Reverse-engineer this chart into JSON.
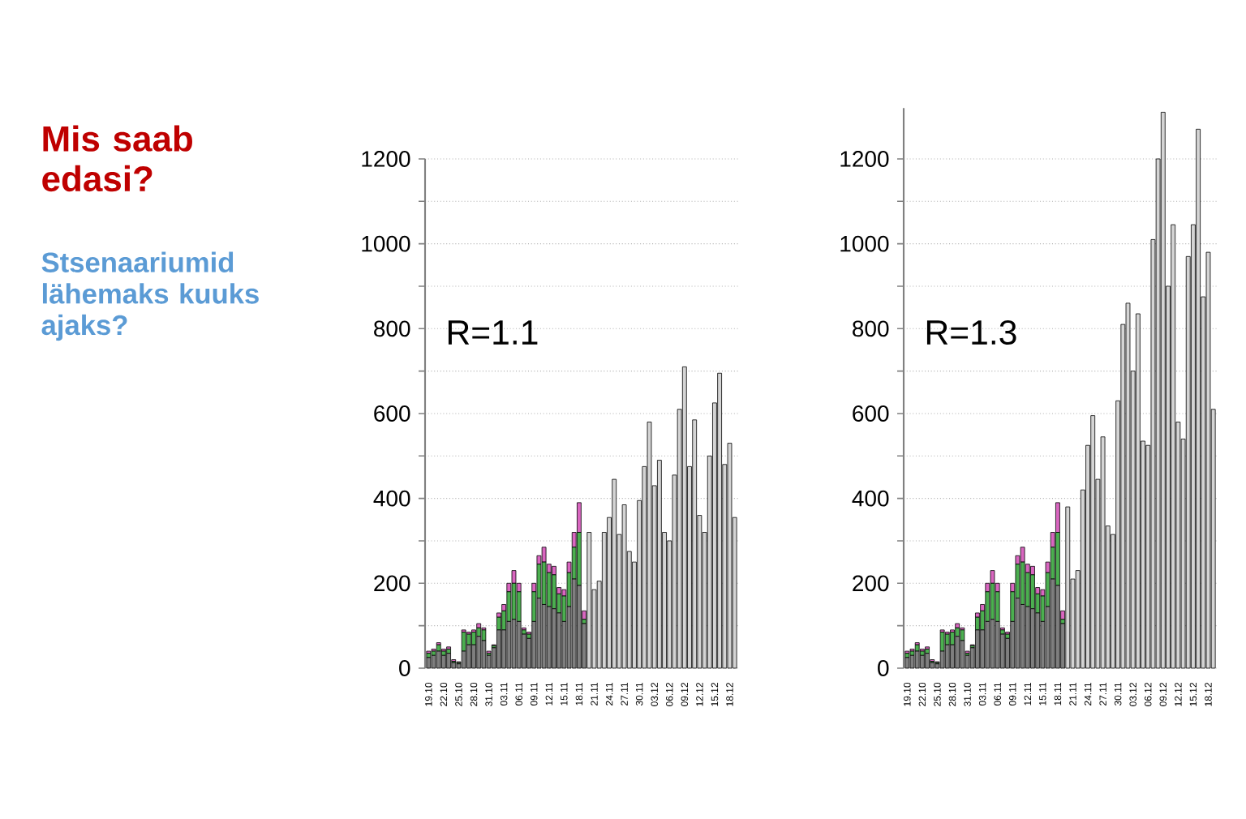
{
  "chart_data": [
    {
      "type": "bar",
      "title": "Mis saab edasi?",
      "subtitle": "Stsenaariumid lähemaks kuuks ajaks?",
      "stacked": true,
      "grid": "y",
      "annotations": [
        "R=1.1"
      ],
      "categories": [
        "19.10",
        null,
        null,
        "22.10",
        null,
        null,
        "25.10",
        null,
        null,
        "28.10",
        null,
        null,
        "31.10",
        null,
        null,
        "03.11",
        null,
        null,
        "06.11",
        null,
        null,
        "09.11",
        null,
        null,
        "12.11",
        null,
        null,
        "15.11",
        null,
        null,
        "18.11",
        null,
        null,
        "21.11",
        null,
        null,
        "24.11",
        null,
        null,
        "27.11",
        null,
        null,
        "30.11",
        null,
        null,
        "03.12",
        null,
        null,
        "06.12",
        null,
        null,
        "09.12",
        null,
        null,
        "12.12",
        null,
        null,
        "15.12",
        null,
        null,
        "18.12",
        null
      ],
      "ylim": [
        0,
        1200
      ],
      "yticks": [
        0,
        {
          "value": 100,
          "label": null
        },
        200,
        {
          "value": 300,
          "label": null
        },
        400,
        {
          "value": 500,
          "label": null
        },
        600,
        {
          "value": 700,
          "label": null
        },
        800,
        {
          "value": 900,
          "label": null
        },
        1000,
        {
          "value": 1100,
          "label": null
        },
        1200
      ],
      "series": [
        {
          "color": "#7f7f7f",
          "values": [
            25,
            30,
            40,
            30,
            35,
            13,
            10,
            40,
            55,
            55,
            75,
            65,
            30,
            48,
            90,
            90,
            110,
            115,
            110,
            80,
            70,
            110,
            165,
            150,
            145,
            140,
            130,
            110,
            145,
            210,
            195,
            105,
            null,
            null,
            null,
            null,
            null,
            null,
            null,
            null,
            null,
            null,
            null,
            null,
            null,
            null,
            null,
            null,
            null,
            null,
            null,
            null,
            null,
            null,
            null,
            null,
            null,
            null,
            null,
            null,
            null,
            null
          ]
        },
        {
          "color": "#4caf50",
          "values": [
            10,
            10,
            15,
            10,
            10,
            3,
            3,
            45,
            25,
            30,
            20,
            25,
            5,
            5,
            30,
            45,
            70,
            85,
            70,
            10,
            10,
            70,
            80,
            100,
            80,
            80,
            45,
            60,
            80,
            75,
            125,
            10,
            null,
            null,
            null,
            null,
            null,
            null,
            null,
            null,
            null,
            null,
            null,
            null,
            null,
            null,
            null,
            null,
            null,
            null,
            null,
            null,
            null,
            null,
            null,
            null,
            null,
            null,
            null,
            null,
            null,
            null
          ]
        },
        {
          "color": "#d966c0",
          "values": [
            5,
            5,
            5,
            5,
            5,
            4,
            2,
            5,
            5,
            5,
            10,
            5,
            5,
            2,
            10,
            15,
            20,
            30,
            20,
            5,
            5,
            20,
            20,
            35,
            20,
            20,
            15,
            15,
            25,
            35,
            70,
            20,
            null,
            null,
            null,
            null,
            null,
            null,
            null,
            null,
            null,
            null,
            null,
            null,
            null,
            null,
            null,
            null,
            null,
            null,
            null,
            null,
            null,
            null,
            null,
            null,
            null,
            null,
            null,
            null,
            null,
            null
          ]
        },
        {
          "color": "#d4d4d4",
          "values": [
            null,
            null,
            null,
            null,
            null,
            null,
            null,
            null,
            null,
            null,
            null,
            null,
            null,
            null,
            null,
            null,
            null,
            null,
            null,
            null,
            null,
            null,
            null,
            null,
            null,
            null,
            null,
            null,
            null,
            null,
            null,
            null,
            320,
            185,
            205,
            320,
            355,
            445,
            315,
            385,
            275,
            250,
            395,
            475,
            580,
            430,
            490,
            320,
            300,
            455,
            610,
            710,
            475,
            585,
            360,
            320,
            500,
            625,
            695,
            480,
            530,
            355
          ]
        }
      ]
    },
    {
      "type": "bar",
      "stacked": true,
      "grid": "y",
      "annotations": [
        "R=1.3"
      ],
      "categories": [
        "19.10",
        null,
        null,
        "22.10",
        null,
        null,
        "25.10",
        null,
        null,
        "28.10",
        null,
        null,
        "31.10",
        null,
        null,
        "03.11",
        null,
        null,
        "06.11",
        null,
        null,
        "09.11",
        null,
        null,
        "12.11",
        null,
        null,
        "15.11",
        null,
        null,
        "18.11",
        null,
        null,
        "21.11",
        null,
        null,
        "24.11",
        null,
        null,
        "27.11",
        null,
        null,
        "30.11",
        null,
        null,
        "03.12",
        null,
        null,
        "06.12",
        null,
        null,
        "09.12",
        null,
        null,
        "12.12",
        null,
        null,
        "15.12",
        null,
        null,
        "18.12",
        null
      ],
      "ylim": [
        0,
        1320
      ],
      "yticks": [
        0,
        {
          "value": 100,
          "label": null
        },
        200,
        {
          "value": 300,
          "label": null
        },
        400,
        {
          "value": 500,
          "label": null
        },
        600,
        {
          "value": 700,
          "label": null
        },
        800,
        {
          "value": 900,
          "label": null
        },
        1000,
        {
          "value": 1100,
          "label": null
        },
        1200
      ],
      "series": [
        {
          "color": "#7f7f7f",
          "values": [
            25,
            30,
            40,
            30,
            35,
            13,
            10,
            40,
            55,
            55,
            75,
            65,
            30,
            48,
            90,
            90,
            110,
            115,
            110,
            80,
            70,
            110,
            165,
            150,
            145,
            140,
            130,
            110,
            145,
            210,
            195,
            105,
            null,
            null,
            null,
            null,
            null,
            null,
            null,
            null,
            null,
            null,
            null,
            null,
            null,
            null,
            null,
            null,
            null,
            null,
            null,
            null,
            null,
            null,
            null,
            null,
            null,
            null,
            null,
            null,
            null,
            null
          ]
        },
        {
          "color": "#4caf50",
          "values": [
            10,
            10,
            15,
            10,
            10,
            3,
            3,
            45,
            25,
            30,
            20,
            25,
            5,
            5,
            30,
            45,
            70,
            85,
            70,
            10,
            10,
            70,
            80,
            100,
            80,
            80,
            45,
            60,
            80,
            75,
            125,
            10,
            null,
            null,
            null,
            null,
            null,
            null,
            null,
            null,
            null,
            null,
            null,
            null,
            null,
            null,
            null,
            null,
            null,
            null,
            null,
            null,
            null,
            null,
            null,
            null,
            null,
            null,
            null,
            null,
            null,
            null
          ]
        },
        {
          "color": "#d966c0",
          "values": [
            5,
            5,
            5,
            5,
            5,
            4,
            2,
            5,
            5,
            5,
            10,
            5,
            5,
            2,
            10,
            15,
            20,
            30,
            20,
            5,
            5,
            20,
            20,
            35,
            20,
            20,
            15,
            15,
            25,
            35,
            70,
            20,
            null,
            null,
            null,
            null,
            null,
            null,
            null,
            null,
            null,
            null,
            null,
            null,
            null,
            null,
            null,
            null,
            null,
            null,
            null,
            null,
            null,
            null,
            null,
            null,
            null,
            null,
            null,
            null,
            null,
            null
          ]
        },
        {
          "color": "#d4d4d4",
          "values": [
            null,
            null,
            null,
            null,
            null,
            null,
            null,
            null,
            null,
            null,
            null,
            null,
            null,
            null,
            null,
            null,
            null,
            null,
            null,
            null,
            null,
            null,
            null,
            null,
            null,
            null,
            null,
            null,
            null,
            null,
            null,
            null,
            380,
            210,
            230,
            420,
            525,
            595,
            445,
            545,
            335,
            315,
            630,
            810,
            860,
            700,
            835,
            535,
            525,
            1010,
            1200,
            1310,
            900,
            1045,
            580,
            540,
            970,
            1045,
            1270,
            875,
            980,
            610
          ]
        }
      ]
    }
  ]
}
